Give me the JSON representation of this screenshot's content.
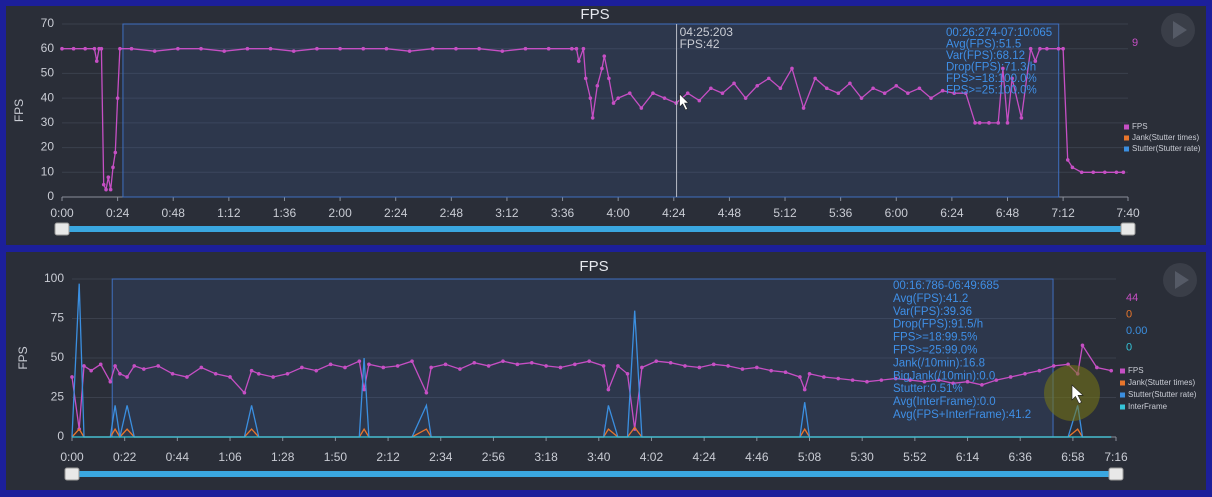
{
  "chart_data": [
    {
      "type": "line",
      "title": "FPS",
      "y_label": "FPS",
      "x": [
        0,
        5,
        10,
        14,
        15,
        16,
        17,
        18,
        19,
        20,
        21,
        22,
        23,
        24,
        25,
        30,
        40,
        50,
        60,
        70,
        80,
        90,
        100,
        110,
        120,
        130,
        140,
        150,
        160,
        170,
        180,
        190,
        200,
        210,
        220,
        222,
        223,
        225,
        226,
        228,
        229,
        231,
        233,
        234,
        236,
        238,
        240,
        245,
        250,
        255,
        260,
        265,
        270,
        275,
        280,
        285,
        290,
        295,
        300,
        305,
        310,
        315,
        320,
        325,
        330,
        335,
        340,
        345,
        350,
        355,
        360,
        365,
        370,
        375,
        380,
        385,
        390,
        394,
        396,
        400,
        404,
        406,
        408,
        410,
        414,
        418,
        420,
        422,
        425,
        430,
        432,
        434,
        436,
        440,
        445,
        450,
        455,
        458
      ],
      "series": [
        {
          "name": "FPS",
          "color": "#c64fc4",
          "markers": true,
          "values": [
            60,
            60,
            60,
            60,
            55,
            60,
            60,
            5,
            3,
            8,
            3,
            12,
            18,
            40,
            60,
            60,
            59,
            60,
            60,
            59,
            60,
            60,
            59,
            60,
            60,
            60,
            60,
            59,
            60,
            60,
            60,
            59,
            60,
            60,
            60,
            60,
            55,
            60,
            48,
            40,
            32,
            45,
            52,
            57,
            48,
            38,
            40,
            42,
            36,
            42,
            40,
            38,
            42,
            39,
            44,
            42,
            46,
            40,
            45,
            48,
            44,
            52,
            36,
            48,
            44,
            42,
            46,
            40,
            44,
            42,
            45,
            42,
            44,
            40,
            43,
            42,
            42,
            30,
            30,
            30,
            30,
            52,
            30,
            48,
            32,
            60,
            55,
            60,
            60,
            60,
            60,
            15,
            12,
            10,
            10,
            10,
            10,
            10
          ]
        }
      ],
      "legend_items": [
        {
          "name": "FPS",
          "color": "#c64fc4"
        },
        {
          "name": "Jank(Stutter times)",
          "color": "#e8762c"
        },
        {
          "name": "Stutter(Stutter rate)",
          "color": "#3b8fe0"
        }
      ],
      "current_value_labels": [
        "9"
      ],
      "xlim": [
        0,
        460
      ],
      "xticks": [
        {
          "value": 0,
          "label": "0:00"
        },
        {
          "value": 24,
          "label": "0:24"
        },
        {
          "value": 48,
          "label": "0:48"
        },
        {
          "value": 72,
          "label": "1:12"
        },
        {
          "value": 96,
          "label": "1:36"
        },
        {
          "value": 120,
          "label": "2:00"
        },
        {
          "value": 144,
          "label": "2:24"
        },
        {
          "value": 168,
          "label": "2:48"
        },
        {
          "value": 192,
          "label": "3:12"
        },
        {
          "value": 216,
          "label": "3:36"
        },
        {
          "value": 240,
          "label": "4:00"
        },
        {
          "value": 264,
          "label": "4:24"
        },
        {
          "value": 288,
          "label": "4:48"
        },
        {
          "value": 312,
          "label": "5:12"
        },
        {
          "value": 336,
          "label": "5:36"
        },
        {
          "value": 360,
          "label": "6:00"
        },
        {
          "value": 384,
          "label": "6:24"
        },
        {
          "value": 408,
          "label": "6:48"
        },
        {
          "value": 432,
          "label": "7:12"
        },
        {
          "value": 460,
          "label": "7:40"
        }
      ],
      "ylim": [
        0,
        70
      ],
      "yticks": [
        0,
        10,
        20,
        30,
        40,
        50,
        60,
        70
      ],
      "grid": true,
      "selection": [
        26.3,
        430.1
      ],
      "cursor": {
        "x": 265.2,
        "time_label": "04:25:203",
        "value_label": "FPS:42"
      },
      "stats": [
        "00:26:274-07:10:065",
        "Avg(FPS):51.5",
        "Var(FPS):68.12",
        "Drop(FPS):71.3/h",
        "FPS>=18:100.0%",
        "FPS>=25:100.0%"
      ]
    },
    {
      "type": "line",
      "title": "FPS",
      "y_label": "FPS",
      "x": [
        0,
        3,
        5,
        8,
        12,
        16,
        18,
        20,
        23,
        26,
        30,
        36,
        42,
        48,
        54,
        60,
        66,
        72,
        75,
        78,
        84,
        90,
        96,
        102,
        108,
        114,
        120,
        122,
        124,
        130,
        136,
        142,
        148,
        150,
        156,
        162,
        168,
        174,
        180,
        186,
        192,
        198,
        204,
        210,
        216,
        222,
        224,
        228,
        232,
        235,
        238,
        244,
        250,
        256,
        262,
        268,
        274,
        280,
        286,
        292,
        298,
        304,
        306,
        308,
        314,
        320,
        326,
        332,
        338,
        344,
        350,
        356,
        362,
        368,
        374,
        380,
        386,
        392,
        398,
        404,
        410,
        416,
        420,
        422,
        428,
        434
      ],
      "series": [
        {
          "name": "FPS",
          "color": "#c64fc4",
          "markers": true,
          "values": [
            38,
            5,
            45,
            42,
            46,
            35,
            45,
            40,
            38,
            45,
            43,
            45,
            40,
            38,
            44,
            40,
            38,
            28,
            42,
            40,
            38,
            40,
            44,
            42,
            46,
            44,
            48,
            30,
            46,
            44,
            45,
            48,
            28,
            44,
            46,
            43,
            47,
            45,
            48,
            46,
            47,
            45,
            44,
            46,
            48,
            45,
            30,
            45,
            40,
            5,
            44,
            48,
            47,
            45,
            44,
            46,
            45,
            43,
            44,
            42,
            41,
            38,
            30,
            40,
            38,
            37,
            36,
            35,
            36,
            37,
            36,
            35,
            36,
            34,
            35,
            33,
            36,
            38,
            40,
            42,
            45,
            46,
            40,
            58,
            44,
            42
          ]
        },
        {
          "name": "Jank(Stutter times)",
          "color": "#e8762c",
          "values": [
            0,
            5,
            0,
            0,
            0,
            0,
            5,
            0,
            5,
            0,
            0,
            0,
            0,
            0,
            0,
            0,
            0,
            0,
            5,
            0,
            0,
            0,
            0,
            0,
            0,
            0,
            0,
            5,
            0,
            0,
            0,
            0,
            5,
            0,
            0,
            0,
            0,
            0,
            0,
            0,
            0,
            0,
            0,
            0,
            0,
            0,
            5,
            0,
            0,
            6,
            0,
            0,
            0,
            0,
            0,
            0,
            0,
            0,
            0,
            0,
            0,
            0,
            5,
            0,
            0,
            0,
            0,
            0,
            0,
            0,
            0,
            0,
            0,
            0,
            0,
            0,
            0,
            0,
            0,
            0,
            0,
            0,
            5,
            0,
            0,
            0
          ]
        },
        {
          "name": "Stutter(Stutter rate)",
          "color": "#3b8fe0",
          "values": [
            0,
            97,
            0,
            0,
            0,
            0,
            20,
            0,
            20,
            0,
            0,
            0,
            0,
            0,
            0,
            0,
            0,
            0,
            20,
            0,
            0,
            0,
            0,
            0,
            0,
            0,
            0,
            50,
            0,
            0,
            0,
            0,
            20,
            0,
            0,
            0,
            0,
            0,
            0,
            0,
            0,
            0,
            0,
            0,
            0,
            0,
            20,
            0,
            0,
            80,
            0,
            0,
            0,
            0,
            0,
            0,
            0,
            0,
            0,
            0,
            0,
            0,
            22,
            0,
            0,
            0,
            0,
            0,
            0,
            0,
            0,
            0,
            0,
            0,
            0,
            0,
            0,
            0,
            0,
            0,
            0,
            0,
            20,
            0,
            0,
            0
          ]
        },
        {
          "name": "InterFrame",
          "color": "#35c4d8",
          "values": [
            0,
            0,
            0,
            0,
            0,
            0,
            0,
            0,
            0,
            0,
            0,
            0,
            0,
            0,
            0,
            0,
            0,
            0,
            0,
            0,
            0,
            0,
            0,
            0,
            0,
            0,
            0,
            0,
            0,
            0,
            0,
            0,
            0,
            0,
            0,
            0,
            0,
            0,
            0,
            0,
            0,
            0,
            0,
            0,
            0,
            0,
            0,
            0,
            0,
            0,
            0,
            0,
            0,
            0,
            0,
            0,
            0,
            0,
            0,
            0,
            0,
            0,
            0,
            0,
            0,
            0,
            0,
            0,
            0,
            0,
            0,
            0,
            0,
            0,
            0,
            0,
            0,
            0,
            0,
            0,
            0,
            0,
            0,
            0,
            0,
            0
          ]
        }
      ],
      "current_value_labels": [
        "44",
        "0",
        "0.00",
        "0"
      ],
      "xlim": [
        0,
        436
      ],
      "xticks": [
        {
          "value": 0,
          "label": "0:00"
        },
        {
          "value": 22,
          "label": "0:22"
        },
        {
          "value": 44,
          "label": "0:44"
        },
        {
          "value": 66,
          "label": "1:06"
        },
        {
          "value": 88,
          "label": "1:28"
        },
        {
          "value": 110,
          "label": "1:50"
        },
        {
          "value": 132,
          "label": "2:12"
        },
        {
          "value": 154,
          "label": "2:34"
        },
        {
          "value": 176,
          "label": "2:56"
        },
        {
          "value": 198,
          "label": "3:18"
        },
        {
          "value": 220,
          "label": "3:40"
        },
        {
          "value": 242,
          "label": "4:02"
        },
        {
          "value": 264,
          "label": "4:24"
        },
        {
          "value": 286,
          "label": "4:46"
        },
        {
          "value": 308,
          "label": "5:08"
        },
        {
          "value": 330,
          "label": "5:30"
        },
        {
          "value": 352,
          "label": "5:52"
        },
        {
          "value": 374,
          "label": "6:14"
        },
        {
          "value": 396,
          "label": "6:36"
        },
        {
          "value": 418,
          "label": "6:58"
        },
        {
          "value": 436,
          "label": "7:16"
        }
      ],
      "ylim": [
        0,
        100
      ],
      "yticks": [
        0,
        25,
        50,
        75,
        100
      ],
      "grid": true,
      "selection": [
        16.8,
        409.7
      ],
      "stats": [
        "00:16:786-06:49:685",
        "Avg(FPS):41.2",
        "Var(FPS):39.36",
        "Drop(FPS):91.5/h",
        "FPS>=18:99.5%",
        "FPS>=25:99.0%",
        "Jank(/10min):16.8",
        "BigJank(/10min):0.0",
        "Stutter:0.51%",
        "Avg(InterFrame):0.0",
        "Avg(FPS+InterFrame):41.2"
      ]
    }
  ]
}
